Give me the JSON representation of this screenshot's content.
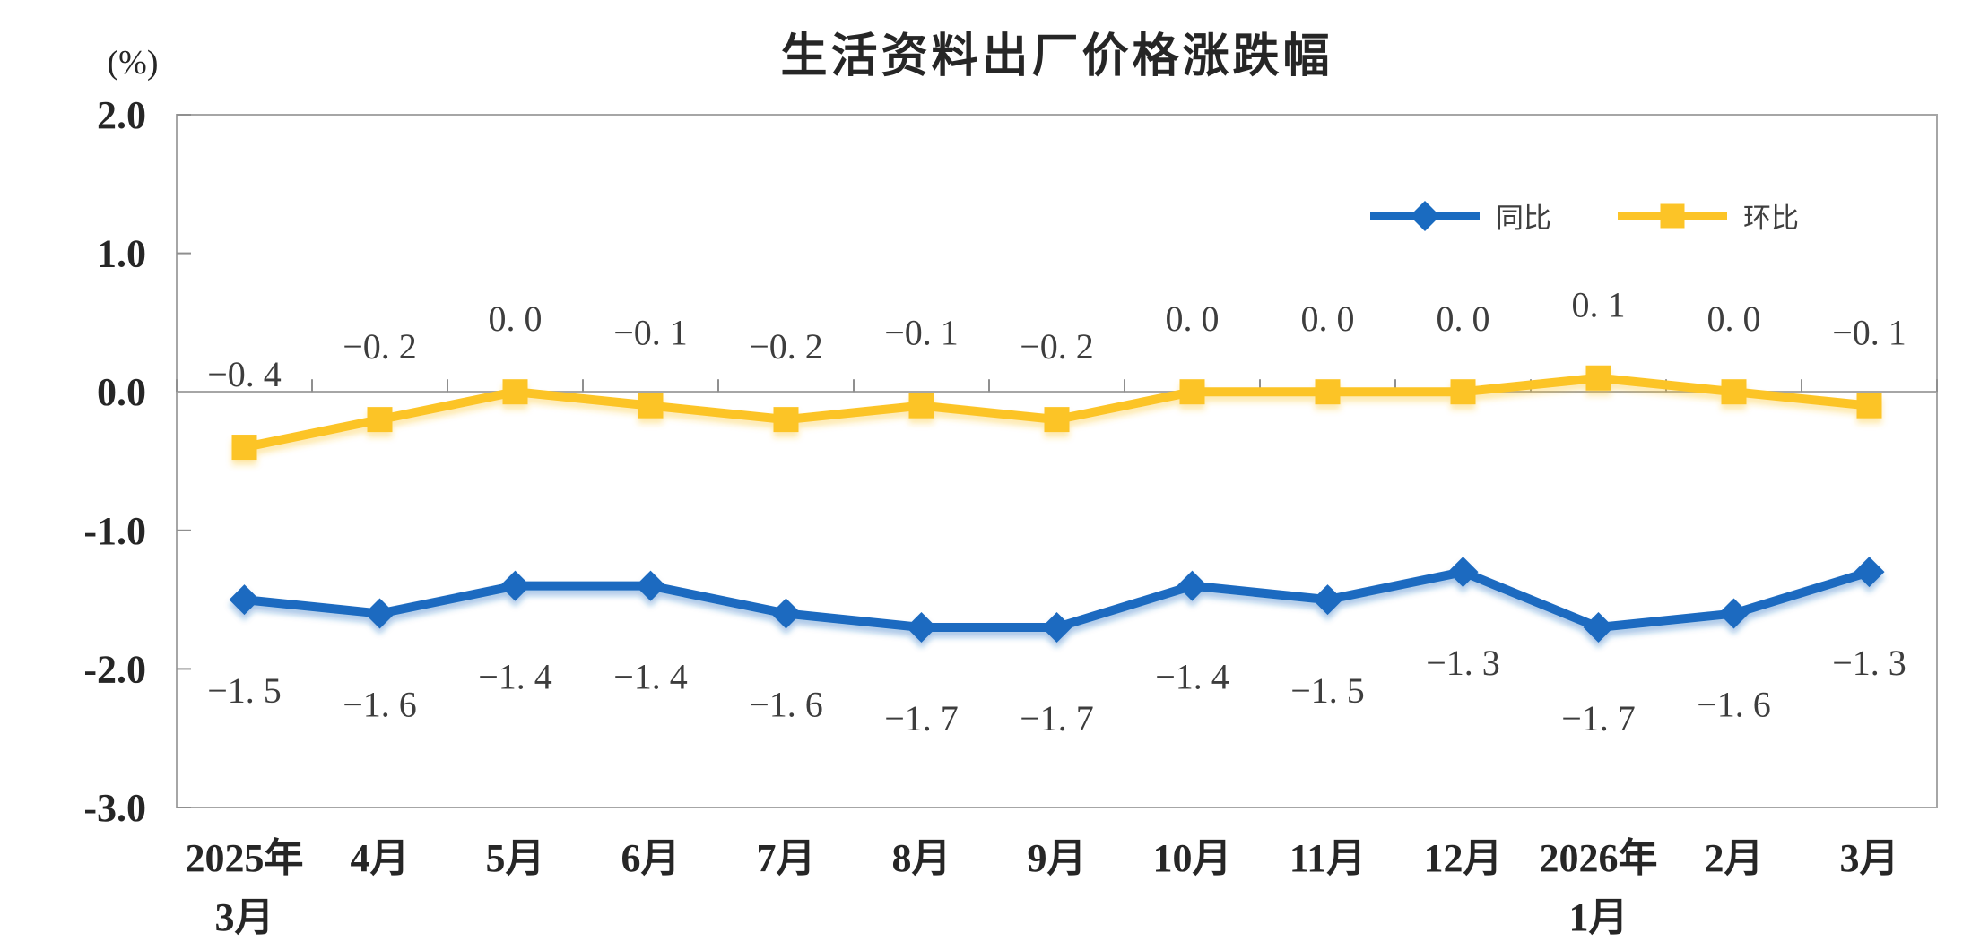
{
  "chart": {
    "title": "生活资料出厂价格涨跌幅",
    "unit_label": "(%)",
    "legend": [
      {
        "label": "同比",
        "marker": "diamond",
        "color": "#1a6bc0"
      },
      {
        "label": "环比",
        "marker": "square",
        "color": "#fcc427"
      }
    ]
  },
  "chart_data": {
    "type": "line",
    "title": "生活资料出厂价格涨跌幅",
    "ylabel": "(%)",
    "ylim": [
      -3.0,
      2.0
    ],
    "yticks": [
      2.0,
      1.0,
      0.0,
      -1.0,
      -2.0,
      -3.0
    ],
    "ytick_labels": [
      "2.0",
      "1.0",
      "0.0",
      "-1.0",
      "-2.0",
      "-3.0"
    ],
    "categories": [
      "2025年\n3月",
      "4月",
      "5月",
      "6月",
      "7月",
      "8月",
      "9月",
      "10月",
      "11月",
      "12月",
      "2026年\n1月",
      "2月",
      "3月"
    ],
    "series": [
      {
        "name": "同比",
        "marker": "diamond",
        "color": "#1a6bc0",
        "label_position": "below",
        "values": [
          -1.5,
          -1.6,
          -1.4,
          -1.4,
          -1.6,
          -1.7,
          -1.7,
          -1.4,
          -1.5,
          -1.3,
          -1.7,
          -1.6,
          -1.3
        ],
        "labels": [
          "−1. 5",
          "−1. 6",
          "−1. 4",
          "−1. 4",
          "−1. 6",
          "−1. 7",
          "−1. 7",
          "−1. 4",
          "−1. 5",
          "−1. 3",
          "−1. 7",
          "−1. 6",
          "−1. 3"
        ]
      },
      {
        "name": "环比",
        "marker": "square",
        "color": "#fcc427",
        "label_position": "above",
        "values": [
          -0.4,
          -0.2,
          0.0,
          -0.1,
          -0.2,
          -0.1,
          -0.2,
          0.0,
          0.0,
          0.0,
          0.1,
          0.0,
          -0.1
        ],
        "labels": [
          "−0. 4",
          "−0. 2",
          "0. 0",
          "−0. 1",
          "−0. 2",
          "−0. 1",
          "−0. 2",
          "0. 0",
          "0. 0",
          "0. 0",
          "0. 1",
          "0. 0",
          "−0. 1"
        ]
      }
    ],
    "legend_position": "top-right-inside",
    "grid": false,
    "zero_line": true
  }
}
